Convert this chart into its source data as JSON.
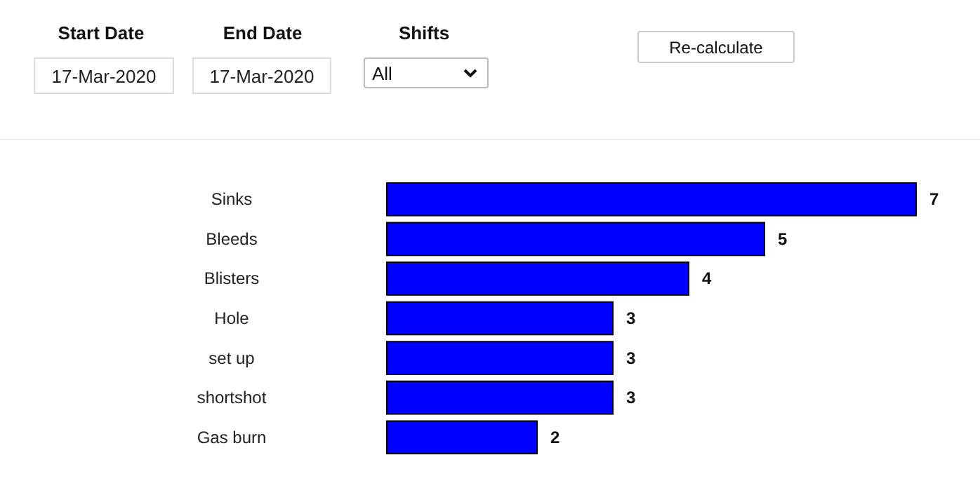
{
  "chart_data": [
    {
      "type": "other",
      "annotations": [
        "Start Date",
        "17-Mar-2020",
        "End Date",
        "17-Mar-2020",
        "Shifts",
        "All",
        "Re-calculate"
      ]
    },
    {
      "type": "bar",
      "orientation": "horizontal",
      "categories": [
        "Sinks",
        "Bleeds",
        "Blisters",
        "Hole",
        "set up",
        "shortshot",
        "Gas burn"
      ],
      "values": [
        7,
        5,
        4,
        3,
        3,
        3,
        2
      ],
      "color": "#0000ff",
      "data_labels": true
    }
  ]
}
